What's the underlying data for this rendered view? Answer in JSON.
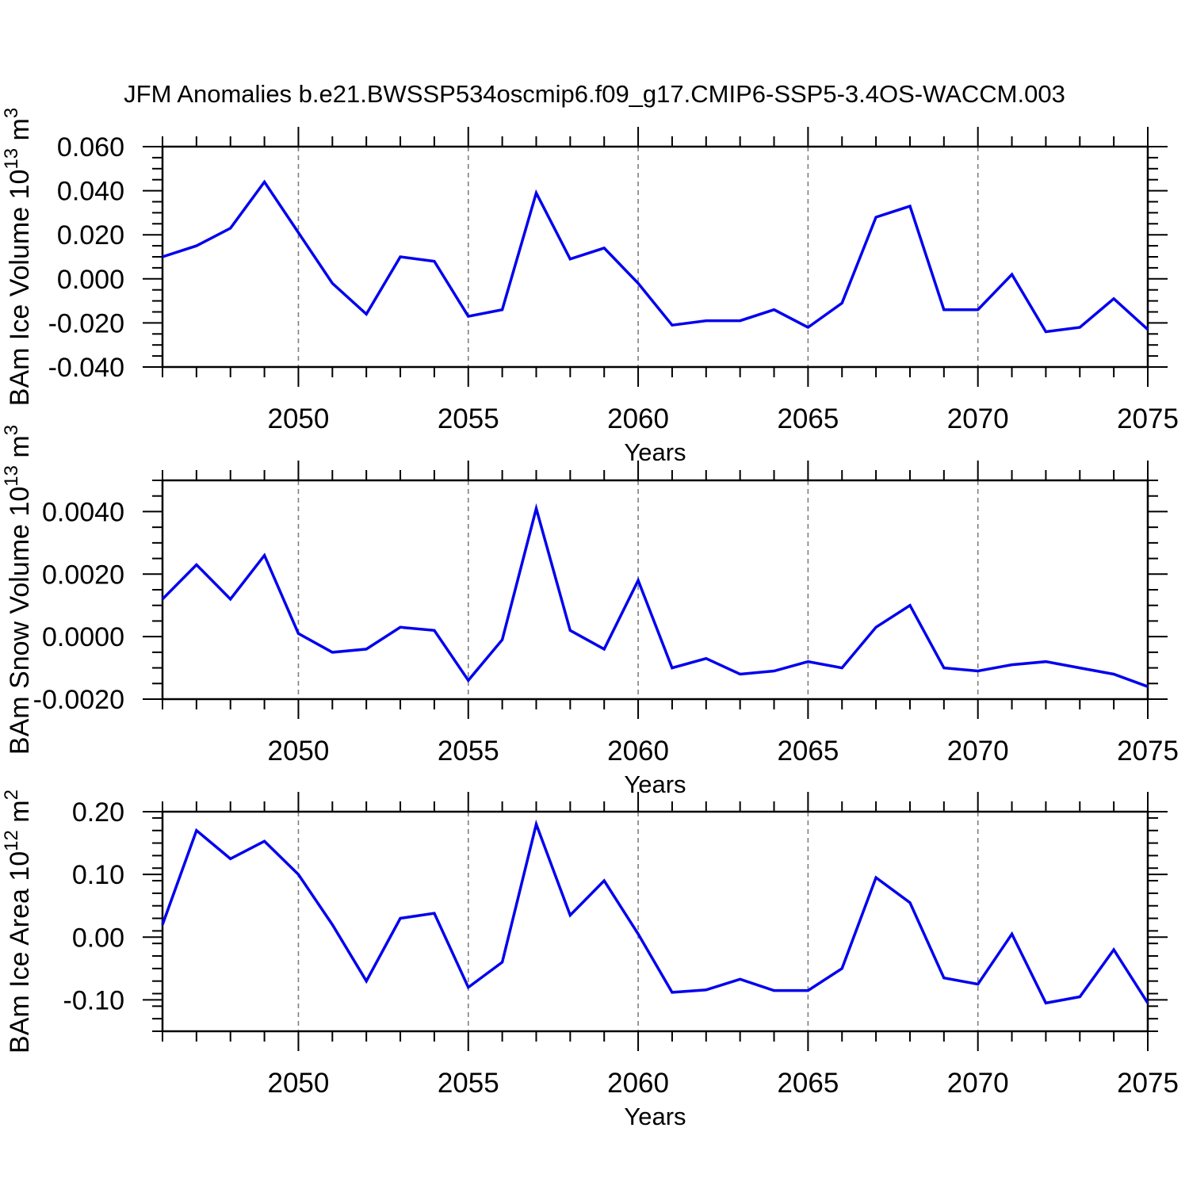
{
  "title": "JFM Anomalies b.e21.BWSSP534oscmip6.f09_g17.CMIP6-SSP5-3.4OS-WACCM.003",
  "colors": {
    "line": "#0000ee",
    "grid": "#7f7f7f",
    "axis": "#000000",
    "text": "#000000",
    "background": "#ffffff"
  },
  "x_axis": {
    "label": "Years",
    "range": [
      2046,
      2075
    ],
    "major_ticks": [
      2050,
      2055,
      2060,
      2065,
      2070,
      2075
    ],
    "major_tick_labels": [
      "2050",
      "2055",
      "2060",
      "2065",
      "2070",
      "2075"
    ],
    "minor_step": 1,
    "gridlines": [
      2050,
      2055,
      2060,
      2065,
      2070
    ],
    "grid_dashed": true
  },
  "years": [
    2046,
    2047,
    2048,
    2049,
    2050,
    2051,
    2052,
    2053,
    2054,
    2055,
    2056,
    2057,
    2058,
    2059,
    2060,
    2061,
    2062,
    2063,
    2064,
    2065,
    2066,
    2067,
    2068,
    2069,
    2070,
    2071,
    2072,
    2073,
    2074,
    2075
  ],
  "chart_data": [
    {
      "id": "ice-volume",
      "type": "line",
      "ylabel": "BAm Ice Volume 10^13 m^3",
      "ylabel_rich": [
        {
          "t": "BAm Ice Volume 10"
        },
        {
          "t": "13",
          "sup": true
        },
        {
          "t": " m"
        },
        {
          "t": "3",
          "sup": true
        }
      ],
      "ylim": [
        -0.04,
        0.06
      ],
      "yticks": [
        {
          "v": 0.06,
          "label": "0.060"
        },
        {
          "v": 0.04,
          "label": "0.040"
        },
        {
          "v": 0.02,
          "label": "0.020"
        },
        {
          "v": 0.0,
          "label": "0.000"
        },
        {
          "v": -0.02,
          "label": "-0.020"
        },
        {
          "v": -0.04,
          "label": "-0.040"
        }
      ],
      "yminor_step": 0.005,
      "values": [
        0.01,
        0.015,
        0.023,
        0.044,
        0.021,
        -0.002,
        -0.016,
        0.01,
        0.008,
        -0.017,
        -0.014,
        0.039,
        0.009,
        0.014,
        -0.002,
        -0.021,
        -0.019,
        -0.019,
        -0.014,
        -0.022,
        -0.011,
        0.028,
        0.033,
        -0.014,
        -0.014,
        0.002,
        -0.024,
        -0.022,
        -0.009,
        -0.023
      ]
    },
    {
      "id": "snow-volume",
      "type": "line",
      "ylabel": "BAm Snow Volume 10^13 m^3",
      "ylabel_rich": [
        {
          "t": "BAm Snow Volume 10"
        },
        {
          "t": "13",
          "sup": true
        },
        {
          "t": " m"
        },
        {
          "t": "3",
          "sup": true
        }
      ],
      "ylim": [
        -0.002,
        0.005
      ],
      "yticks": [
        {
          "v": 0.004,
          "label": "0.0040"
        },
        {
          "v": 0.002,
          "label": "0.0020"
        },
        {
          "v": 0.0,
          "label": "0.0000"
        },
        {
          "v": -0.002,
          "label": "-0.0020"
        }
      ],
      "yminor_step": 0.0005,
      "values": [
        0.0012,
        0.0023,
        0.0012,
        0.0026,
        0.0001,
        -0.0005,
        -0.0004,
        0.0003,
        0.0002,
        -0.0014,
        -0.0001,
        0.0041,
        0.0002,
        -0.0004,
        0.0018,
        -0.001,
        -0.0007,
        -0.0012,
        -0.0011,
        -0.0008,
        -0.001,
        0.0003,
        0.001,
        -0.001,
        -0.0011,
        -0.0009,
        -0.0008,
        -0.001,
        -0.0012,
        -0.0016
      ]
    },
    {
      "id": "ice-area",
      "type": "line",
      "ylabel": "BAm Ice Area 10^12 m^2",
      "ylabel_rich": [
        {
          "t": "BAm Ice Area 10"
        },
        {
          "t": "12",
          "sup": true
        },
        {
          "t": " m"
        },
        {
          "t": "2",
          "sup": true
        }
      ],
      "ylim": [
        -0.15,
        0.2
      ],
      "yticks": [
        {
          "v": 0.2,
          "label": "0.20"
        },
        {
          "v": 0.1,
          "label": "0.10"
        },
        {
          "v": 0.0,
          "label": "0.00"
        },
        {
          "v": -0.1,
          "label": "-0.10"
        }
      ],
      "yminor_step": 0.02,
      "values": [
        0.02,
        0.17,
        0.125,
        0.153,
        0.1,
        0.02,
        -0.07,
        0.03,
        0.038,
        -0.08,
        -0.04,
        0.18,
        0.035,
        0.09,
        0.005,
        -0.088,
        -0.084,
        -0.067,
        -0.085,
        -0.085,
        -0.05,
        0.095,
        0.055,
        -0.065,
        -0.075,
        0.005,
        -0.105,
        -0.095,
        -0.02,
        -0.105
      ]
    }
  ]
}
